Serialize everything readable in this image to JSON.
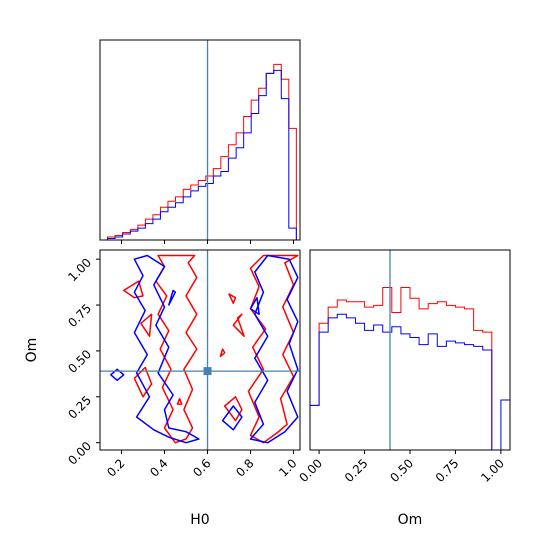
{
  "chart_data": {
    "type": "corner",
    "parameters": [
      "H0",
      "Om"
    ],
    "truth": {
      "H0": 0.6,
      "Om": 0.39
    },
    "colors": {
      "red": "#ff0000",
      "blue": "#0000ff",
      "truth": "#4682b4"
    },
    "series": [
      {
        "color": "red"
      },
      {
        "color": "blue"
      }
    ],
    "panels": [
      {
        "id": "h0-hist",
        "type": "histogram",
        "param": "H0",
        "xlim": [
          0.1,
          1.03
        ],
        "bin_edges": [
          0.1,
          0.135,
          0.17,
          0.205,
          0.241,
          0.276,
          0.311,
          0.346,
          0.381,
          0.416,
          0.451,
          0.487,
          0.522,
          0.557,
          0.592,
          0.627,
          0.662,
          0.697,
          0.733,
          0.768,
          0.803,
          0.838,
          0.873,
          0.908,
          0.943,
          0.978,
          1.013
        ],
        "red": [
          0,
          2,
          3,
          5,
          7,
          10,
          14,
          17,
          22,
          26,
          29,
          34,
          37,
          40,
          43,
          48,
          56,
          64,
          72,
          83,
          94,
          102,
          112,
          118,
          108,
          75
        ],
        "blue": [
          0,
          1,
          2,
          4,
          6,
          8,
          11,
          14,
          19,
          22,
          25,
          29,
          33,
          36,
          38,
          43,
          46,
          55,
          62,
          72,
          85,
          97,
          112,
          114,
          95,
          8
        ],
        "ymax": 120
      },
      {
        "id": "om-hist",
        "type": "histogram",
        "param": "Om",
        "xlim": [
          -0.05,
          1.05
        ],
        "xticks": [
          "0.00",
          "0.25",
          "0.50",
          "0.75",
          "1.00"
        ],
        "bin_edges": [
          -0.05,
          0.0,
          0.05,
          0.1,
          0.15,
          0.2,
          0.25,
          0.3,
          0.35,
          0.4,
          0.45,
          0.5,
          0.55,
          0.6,
          0.65,
          0.7,
          0.75,
          0.8,
          0.85,
          0.9,
          0.95,
          1.0,
          1.05
        ],
        "red": [
          0.25,
          0.71,
          0.8,
          0.84,
          0.83,
          0.83,
          0.8,
          0.81,
          0.91,
          0.77,
          0.91,
          0.85,
          0.79,
          0.82,
          0.83,
          0.81,
          0.8,
          0.79,
          0.67,
          0.66,
          0.0,
          0.0
        ],
        "blue": [
          0.25,
          0.66,
          0.74,
          0.76,
          0.74,
          0.71,
          0.67,
          0.7,
          0.66,
          0.69,
          0.65,
          0.63,
          0.59,
          0.65,
          0.58,
          0.61,
          0.6,
          0.59,
          0.58,
          0.56,
          0.0,
          0.28
        ],
        "ymax": 1.0
      },
      {
        "id": "joint",
        "type": "contour",
        "x_param": "H0",
        "y_param": "Om",
        "xlim": [
          0.1,
          1.03
        ],
        "ylim": [
          -0.04,
          1.05
        ],
        "xticks": [
          "0.2",
          "0.4",
          "0.6",
          "0.8",
          "1.0"
        ],
        "yticks": [
          "0.00",
          "0.25",
          "0.50",
          "0.75",
          "1.00"
        ],
        "red_contours": [
          [
            [
              0.37,
              1.02
            ],
            [
              0.4,
              0.96
            ],
            [
              0.36,
              0.88
            ],
            [
              0.41,
              0.8
            ],
            [
              0.37,
              0.7
            ],
            [
              0.42,
              0.61
            ],
            [
              0.38,
              0.51
            ],
            [
              0.43,
              0.4
            ],
            [
              0.39,
              0.3
            ],
            [
              0.44,
              0.18
            ],
            [
              0.4,
              0.08
            ],
            [
              0.45,
              0.0
            ],
            [
              0.5,
              0.02
            ],
            [
              0.53,
              0.08
            ],
            [
              0.49,
              0.18
            ],
            [
              0.53,
              0.29
            ],
            [
              0.49,
              0.4
            ],
            [
              0.55,
              0.51
            ],
            [
              0.5,
              0.6
            ],
            [
              0.55,
              0.7
            ],
            [
              0.5,
              0.8
            ],
            [
              0.55,
              0.9
            ],
            [
              0.51,
              0.98
            ],
            [
              0.54,
              1.02
            ]
          ],
          [
            [
              0.28,
              0.88
            ],
            [
              0.21,
              0.83
            ],
            [
              0.26,
              0.79
            ],
            [
              0.3,
              0.8
            ]
          ],
          [
            [
              0.29,
              0.65
            ],
            [
              0.33,
              0.58
            ],
            [
              0.34,
              0.7
            ]
          ],
          [
            [
              0.31,
              0.41
            ],
            [
              0.26,
              0.35
            ],
            [
              0.3,
              0.25
            ],
            [
              0.34,
              0.32
            ]
          ],
          [
            [
              0.47,
              0.24
            ],
            [
              0.46,
              0.21
            ],
            [
              0.48,
              0.21
            ]
          ],
          [
            [
              0.86,
              1.02
            ],
            [
              0.8,
              0.95
            ],
            [
              0.84,
              0.85
            ],
            [
              0.8,
              0.73
            ],
            [
              0.87,
              0.62
            ],
            [
              0.81,
              0.52
            ],
            [
              0.86,
              0.4
            ],
            [
              0.79,
              0.28
            ],
            [
              0.84,
              0.14
            ],
            [
              0.8,
              0.04
            ],
            [
              0.86,
              0.0
            ],
            [
              0.92,
              0.05
            ],
            [
              0.97,
              0.1
            ],
            [
              0.94,
              0.24
            ],
            [
              1.0,
              0.36
            ],
            [
              0.95,
              0.48
            ],
            [
              1.0,
              0.6
            ],
            [
              0.95,
              0.74
            ],
            [
              1.0,
              0.86
            ],
            [
              0.96,
              0.98
            ],
            [
              1.02,
              1.02
            ]
          ],
          [
            [
              0.76,
              0.7
            ],
            [
              0.72,
              0.64
            ],
            [
              0.77,
              0.58
            ],
            [
              0.74,
              0.68
            ]
          ],
          [
            [
              0.72,
              0.76
            ],
            [
              0.7,
              0.81
            ],
            [
              0.73,
              0.79
            ]
          ],
          [
            [
              0.67,
              0.51
            ],
            [
              0.66,
              0.47
            ],
            [
              0.68,
              0.49
            ]
          ],
          [
            [
              0.73,
              0.25
            ],
            [
              0.68,
              0.2
            ],
            [
              0.73,
              0.12
            ],
            [
              0.76,
              0.18
            ]
          ]
        ],
        "blue_contours": [
          [
            [
              0.26,
              1.0
            ],
            [
              0.3,
              0.91
            ],
            [
              0.26,
              0.82
            ],
            [
              0.31,
              0.72
            ],
            [
              0.26,
              0.6
            ],
            [
              0.32,
              0.48
            ],
            [
              0.27,
              0.38
            ],
            [
              0.33,
              0.25
            ],
            [
              0.27,
              0.14
            ],
            [
              0.35,
              0.07
            ],
            [
              0.42,
              0.03
            ],
            [
              0.5,
              0.0
            ],
            [
              0.56,
              0.02
            ],
            [
              0.5,
              0.06
            ],
            [
              0.42,
              0.08
            ],
            [
              0.4,
              0.18
            ],
            [
              0.44,
              0.26
            ],
            [
              0.37,
              0.38
            ],
            [
              0.42,
              0.52
            ],
            [
              0.36,
              0.64
            ],
            [
              0.4,
              0.74
            ],
            [
              0.35,
              0.86
            ],
            [
              0.4,
              0.96
            ],
            [
              0.32,
              1.02
            ]
          ],
          [
            [
              0.18,
              0.4
            ],
            [
              0.15,
              0.37
            ],
            [
              0.18,
              0.34
            ],
            [
              0.21,
              0.37
            ]
          ],
          [
            [
              0.44,
              0.83
            ],
            [
              0.42,
              0.75
            ],
            [
              0.45,
              0.82
            ]
          ],
          [
            [
              0.88,
              1.02
            ],
            [
              0.82,
              0.93
            ],
            [
              0.86,
              0.82
            ],
            [
              0.82,
              0.7
            ],
            [
              0.88,
              0.58
            ],
            [
              0.82,
              0.46
            ],
            [
              0.88,
              0.34
            ],
            [
              0.82,
              0.22
            ],
            [
              0.86,
              0.1
            ],
            [
              0.8,
              0.02
            ],
            [
              0.88,
              0.0
            ],
            [
              0.96,
              0.06
            ],
            [
              1.02,
              0.14
            ],
            [
              0.97,
              0.28
            ],
            [
              1.02,
              0.4
            ],
            [
              0.98,
              0.54
            ],
            [
              1.02,
              0.66
            ],
            [
              0.97,
              0.78
            ],
            [
              1.02,
              0.9
            ],
            [
              0.98,
              1.0
            ]
          ],
          [
            [
              0.8,
              0.73
            ],
            [
              0.84,
              0.7
            ],
            [
              0.83,
              0.79
            ]
          ],
          [
            [
              0.72,
              0.2
            ],
            [
              0.67,
              0.12
            ],
            [
              0.72,
              0.07
            ],
            [
              0.76,
              0.14
            ]
          ]
        ],
        "truth_point": {
          "H0": 0.6,
          "Om": 0.39
        }
      }
    ]
  },
  "axes": {
    "xlabel_left": "H0",
    "xlabel_right": "Om",
    "ylabel": "Om"
  }
}
